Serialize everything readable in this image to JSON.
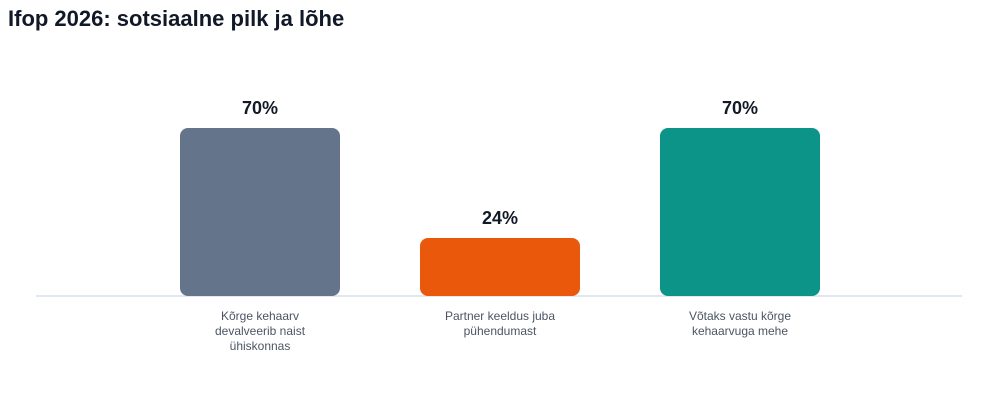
{
  "chart_data": {
    "type": "bar",
    "title": "Ifop 2026: sotsiaalne pilk ja lõhe",
    "categories": [
      "Kõrge kehaarv devalveerib naist ühiskonnas",
      "Partner keeldus juba pühendumast",
      "Võtaks vastu kõrge kehaarvuga mehe"
    ],
    "values": [
      70,
      24,
      70
    ],
    "value_labels": [
      "70%",
      "24%",
      "70%"
    ],
    "colors": [
      "#64748b",
      "#ea580c",
      "#0d9488"
    ]
  }
}
